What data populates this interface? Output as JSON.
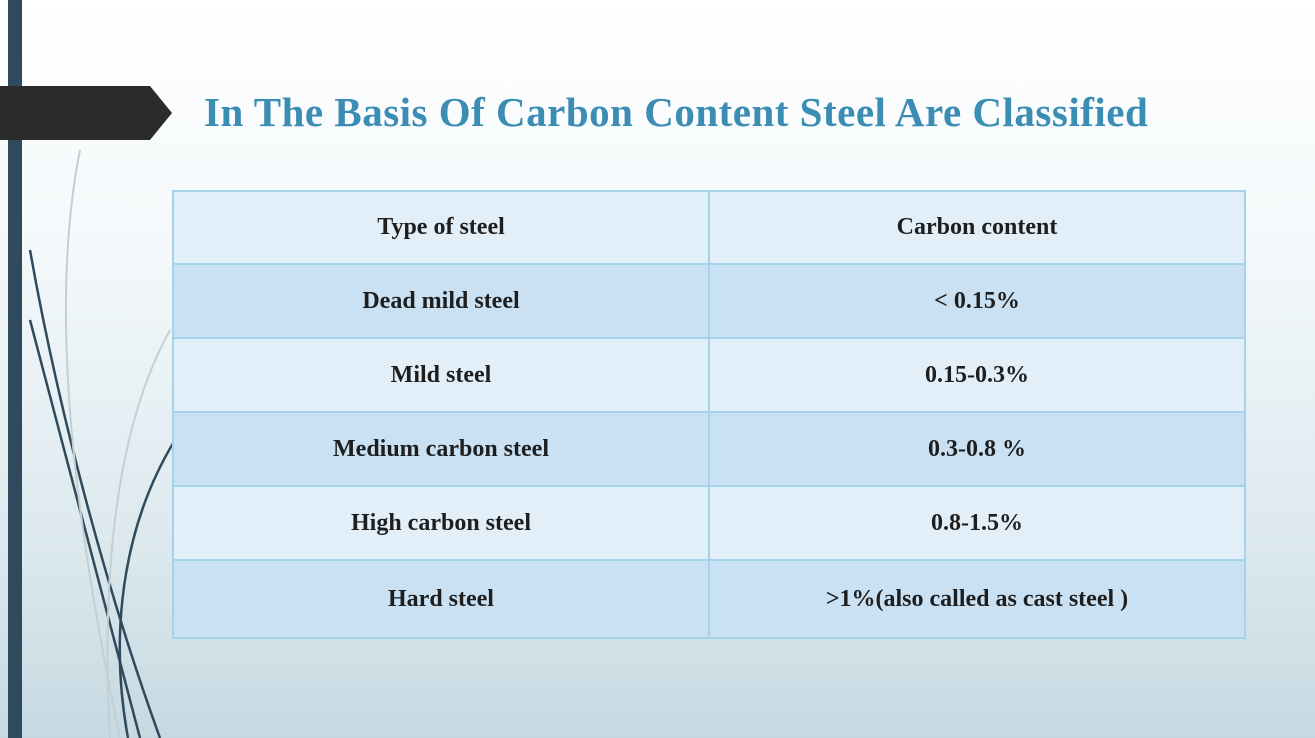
{
  "title": "In The Basis Of Carbon Content Steel Are Classified",
  "table": {
    "header": [
      "Type of steel",
      "Carbon content"
    ],
    "rows": [
      [
        "Dead mild steel",
        "< 0.15%"
      ],
      [
        "Mild steel",
        "0.15-0.3%"
      ],
      [
        "Medium carbon steel",
        "0.3-0.8 %"
      ],
      [
        "High carbon steel",
        "0.8-1.5%"
      ],
      [
        "Hard steel",
        ">1%(also called as cast steel )"
      ]
    ]
  }
}
